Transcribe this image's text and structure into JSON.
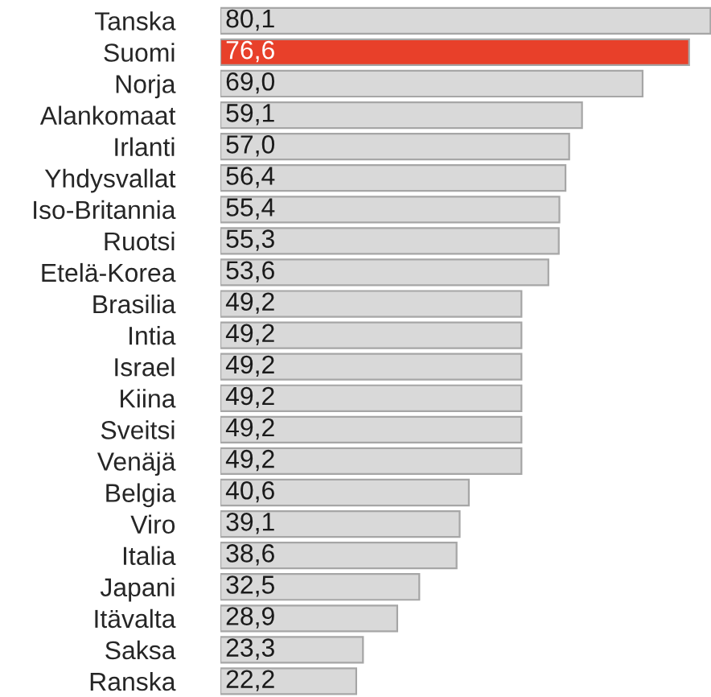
{
  "chart_data": {
    "type": "bar",
    "orientation": "horizontal",
    "data_labels": true,
    "categories": [
      "Tanska",
      "Suomi",
      "Norja",
      "Alankomaat",
      "Irlanti",
      "Yhdysvallat",
      "Iso-Britannia",
      "Ruotsi",
      "Etelä-Korea",
      "Brasilia",
      "Intia",
      "Israel",
      "Kiina",
      "Sveitsi",
      "Venäjä",
      "Belgia",
      "Viro",
      "Italia",
      "Japani",
      "Itävalta",
      "Saksa",
      "Ranska"
    ],
    "values": [
      80.1,
      76.6,
      69.0,
      59.1,
      57.0,
      56.4,
      55.4,
      55.3,
      53.6,
      49.2,
      49.2,
      49.2,
      49.2,
      49.2,
      49.2,
      40.6,
      39.1,
      38.6,
      32.5,
      28.9,
      23.3,
      22.2
    ],
    "value_labels": [
      "80,1",
      "76,6",
      "69,0",
      "59,1",
      "57,0",
      "56,4",
      "55,4",
      "55,3",
      "53,6",
      "49,2",
      "49,2",
      "49,2",
      "49,2",
      "49,2",
      "49,2",
      "40,6",
      "39,1",
      "38,6",
      "32,5",
      "28,9",
      "23,3",
      "22,2"
    ],
    "colors": [
      "#d9d9d9",
      "#e8402a",
      "#d9d9d9",
      "#d9d9d9",
      "#d9d9d9",
      "#d9d9d9",
      "#d9d9d9",
      "#d9d9d9",
      "#d9d9d9",
      "#d9d9d9",
      "#d9d9d9",
      "#d9d9d9",
      "#d9d9d9",
      "#d9d9d9",
      "#d9d9d9",
      "#d9d9d9",
      "#d9d9d9",
      "#d9d9d9",
      "#d9d9d9",
      "#d9d9d9",
      "#d9d9d9",
      "#d9d9d9"
    ],
    "grid": false,
    "legend": false
  }
}
